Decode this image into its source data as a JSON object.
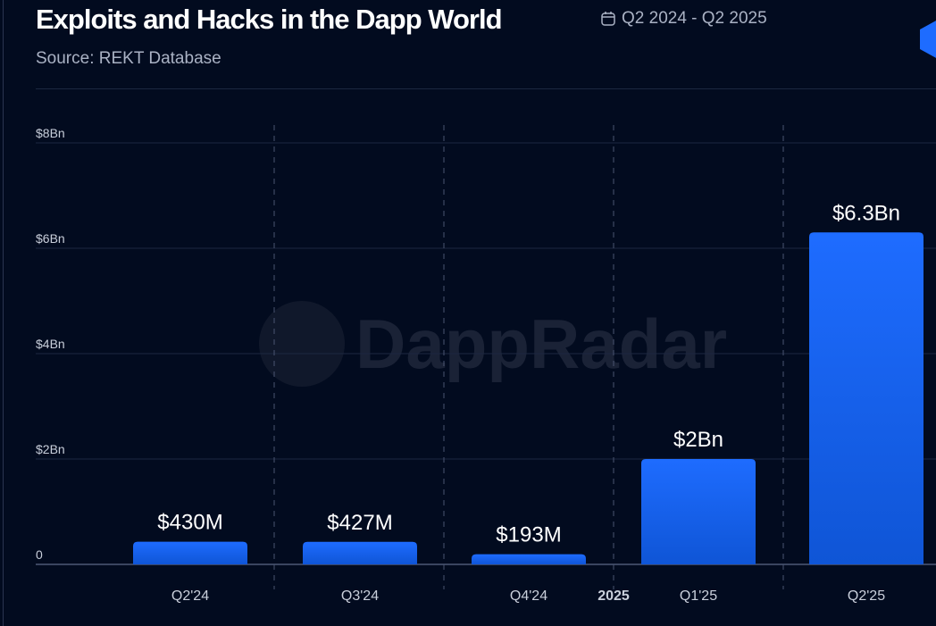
{
  "header": {
    "title": "Exploits and Hacks in the Dapp World",
    "period": "Q2 2024 - Q2 2025",
    "period_icon": "calendar-icon",
    "source": "Source: REKT Database"
  },
  "watermark": "DappRadar",
  "colors": {
    "background": "#020b1f",
    "bar": "#1e6cff",
    "bar_bottom": "#0f55d6"
  },
  "chart_data": {
    "type": "bar",
    "title": "Exploits and Hacks in the Dapp World",
    "categories": [
      "Q2'24",
      "Q3'24",
      "Q4'24",
      "Q1'25",
      "Q2'25"
    ],
    "values": [
      0.43,
      0.427,
      0.193,
      2.0,
      6.3
    ],
    "unit": "$Bn",
    "data_labels": [
      "$430M",
      "$427M",
      "$193M",
      "$2Bn",
      "$6.3Bn"
    ],
    "yticks": [
      0,
      2,
      4,
      6,
      8
    ],
    "ytick_labels": [
      "0",
      "$2Bn",
      "$4Bn",
      "$6Bn",
      "$8Bn"
    ],
    "ylim": [
      0,
      8
    ],
    "year_marker": "2025",
    "grid": true
  }
}
